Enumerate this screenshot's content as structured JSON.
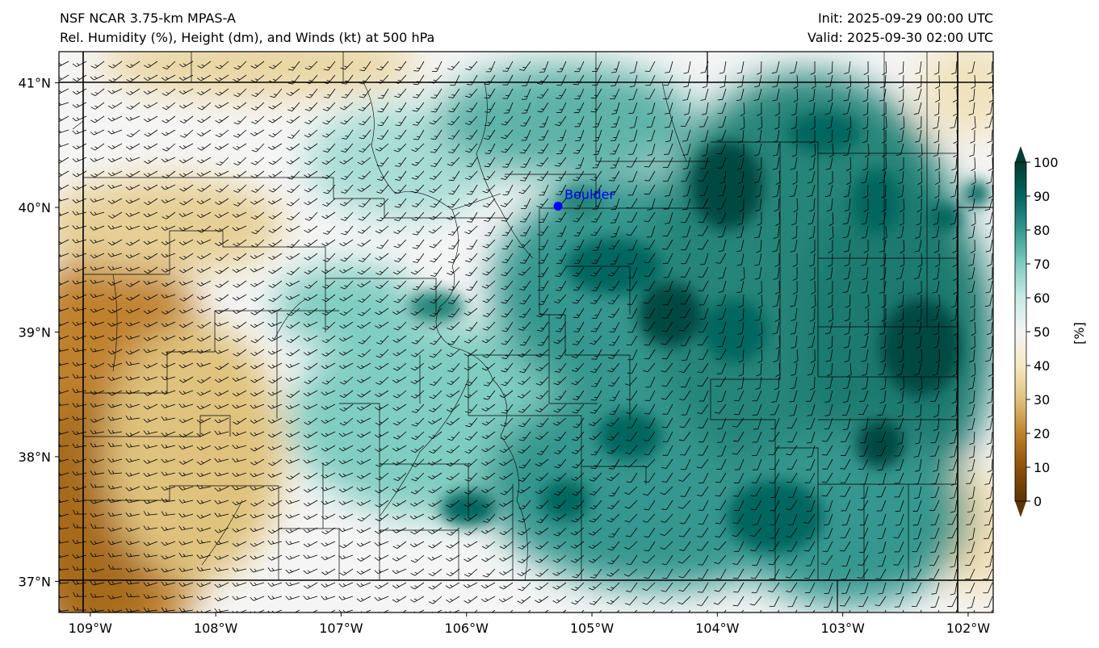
{
  "header": {
    "title_line1": "NSF NCAR 3.75-km MPAS-A",
    "title_line2": "Rel. Humidity (%), Height (dm), and Winds (kt) at 500 hPa",
    "init": "Init: 2025-09-29 00:00 UTC",
    "valid": "Valid: 2025-09-30 02:00 UTC"
  },
  "map": {
    "field": "relative humidity",
    "region": "Colorado",
    "lon_range": [
      -109.25,
      -101.8
    ],
    "lat_range": [
      36.75,
      41.25
    ],
    "lon_ticks": [
      "109°W",
      "108°W",
      "107°W",
      "106°W",
      "105°W",
      "104°W",
      "103°W",
      "102°W"
    ],
    "lat_ticks": [
      "37°N",
      "38°N",
      "39°N",
      "40°N",
      "41°N"
    ],
    "marker": {
      "label": "Boulder",
      "lon": -105.27,
      "lat": 40.01,
      "color": "#0000ff"
    }
  },
  "colorbar": {
    "unit_label": "[%]",
    "ticks": [
      "0",
      "10",
      "20",
      "30",
      "40",
      "50",
      "60",
      "70",
      "80",
      "90",
      "100"
    ],
    "colors": [
      "#5a3505",
      "#8c510a",
      "#bf812d",
      "#dfc27d",
      "#f6e8c3",
      "#f5f5f5",
      "#c7eae5",
      "#80cdc1",
      "#35978f",
      "#01665e",
      "#003c30"
    ]
  }
}
